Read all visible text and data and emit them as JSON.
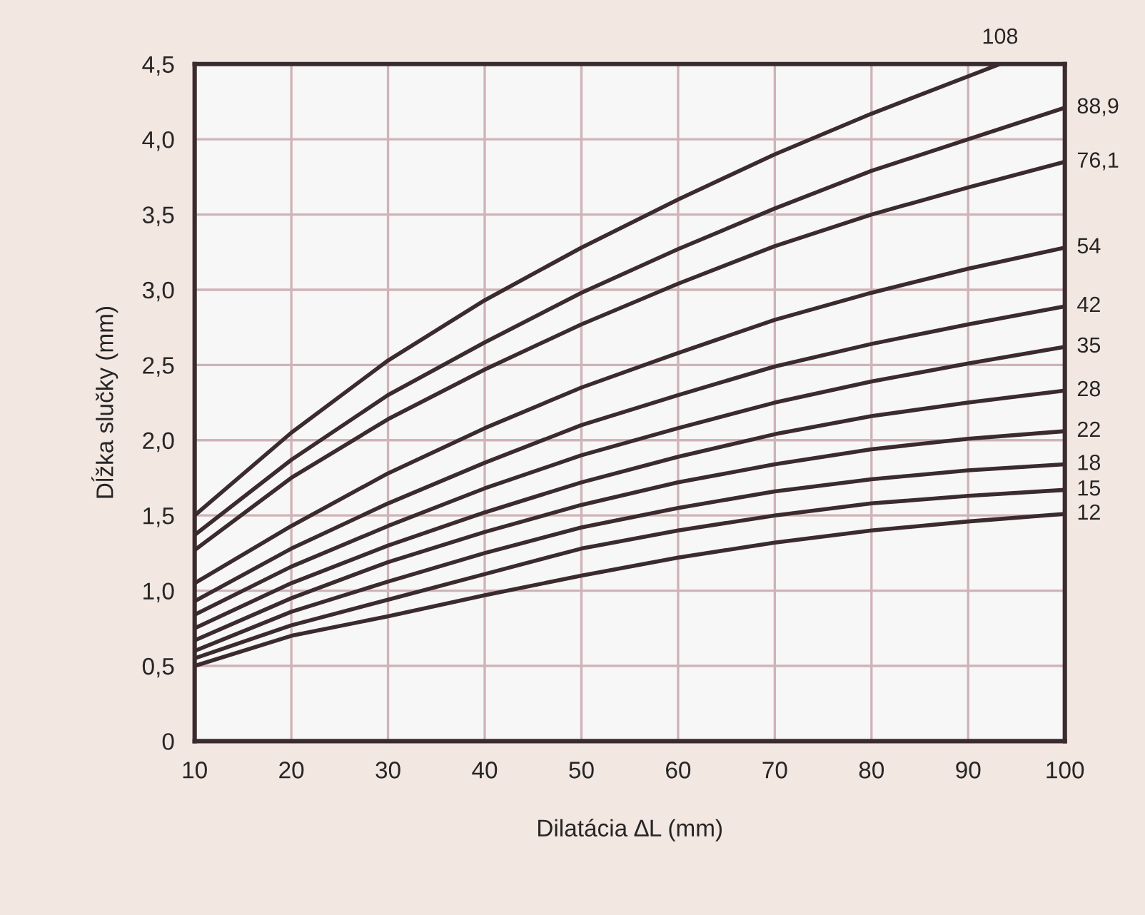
{
  "chart_data": {
    "type": "line",
    "xlabel": "Dilatácia ∆L (mm)",
    "ylabel": "Dĺžka slučky (mm)",
    "xlim": [
      10,
      100
    ],
    "xticks": [
      10,
      20,
      30,
      40,
      50,
      60,
      70,
      80,
      90,
      100
    ],
    "ylim": [
      0,
      4.5
    ],
    "yticks": [
      0,
      {
        "value": 0.5,
        "label": "0,5"
      },
      {
        "value": 1.0,
        "label": "1,0"
      },
      {
        "value": 1.5,
        "label": "1,5"
      },
      {
        "value": 2.0,
        "label": "2,0"
      },
      {
        "value": 2.5,
        "label": "2,5"
      },
      {
        "value": 3.0,
        "label": "3,0"
      },
      {
        "value": 3.5,
        "label": "3,5"
      },
      {
        "value": 4.0,
        "label": "4,0"
      },
      {
        "value": 4.5,
        "label": "4,5"
      }
    ],
    "grid": true,
    "marker": "none",
    "line_style": "solid",
    "series": [
      {
        "name": "108",
        "color": "#3b2b2e",
        "x": [
          10,
          20,
          30,
          40,
          50,
          60,
          70,
          80,
          93.3
        ],
        "values": [
          1.5,
          2.05,
          2.53,
          2.93,
          3.28,
          3.6,
          3.9,
          4.17,
          4.5
        ]
      },
      {
        "name": "88,9",
        "color": "#3b2b2e",
        "x": [
          10,
          20,
          30,
          40,
          50,
          60,
          70,
          80,
          90,
          100
        ],
        "values": [
          1.37,
          1.87,
          2.3,
          2.65,
          2.98,
          3.27,
          3.54,
          3.79,
          4.0,
          4.21
        ]
      },
      {
        "name": "76,1",
        "color": "#3b2b2e",
        "x": [
          10,
          20,
          30,
          40,
          50,
          60,
          70,
          80,
          90,
          100
        ],
        "values": [
          1.27,
          1.75,
          2.14,
          2.47,
          2.77,
          3.04,
          3.29,
          3.5,
          3.68,
          3.85
        ]
      },
      {
        "name": "54",
        "color": "#3b2b2e",
        "x": [
          10,
          20,
          30,
          40,
          50,
          60,
          70,
          80,
          90,
          100
        ],
        "values": [
          1.05,
          1.43,
          1.78,
          2.08,
          2.35,
          2.58,
          2.8,
          2.98,
          3.14,
          3.28
        ]
      },
      {
        "name": "42",
        "color": "#3b2b2e",
        "x": [
          10,
          20,
          30,
          40,
          50,
          60,
          70,
          80,
          90,
          100
        ],
        "values": [
          0.93,
          1.28,
          1.58,
          1.85,
          2.1,
          2.3,
          2.49,
          2.64,
          2.77,
          2.89
        ]
      },
      {
        "name": "35",
        "color": "#3b2b2e",
        "x": [
          10,
          20,
          30,
          40,
          50,
          60,
          70,
          80,
          90,
          100
        ],
        "values": [
          0.84,
          1.16,
          1.43,
          1.68,
          1.9,
          2.08,
          2.25,
          2.39,
          2.51,
          2.62
        ]
      },
      {
        "name": "28",
        "color": "#3b2b2e",
        "x": [
          10,
          20,
          30,
          40,
          50,
          60,
          70,
          80,
          90,
          100
        ],
        "values": [
          0.75,
          1.05,
          1.3,
          1.52,
          1.72,
          1.89,
          2.04,
          2.16,
          2.25,
          2.33
        ]
      },
      {
        "name": "22",
        "color": "#3b2b2e",
        "x": [
          10,
          20,
          30,
          40,
          50,
          60,
          70,
          80,
          90,
          100
        ],
        "values": [
          0.67,
          0.95,
          1.19,
          1.39,
          1.57,
          1.72,
          1.84,
          1.94,
          2.01,
          2.06
        ]
      },
      {
        "name": "18",
        "color": "#3b2b2e",
        "x": [
          10,
          20,
          30,
          40,
          50,
          60,
          70,
          80,
          90,
          100
        ],
        "values": [
          0.6,
          0.86,
          1.06,
          1.25,
          1.42,
          1.55,
          1.66,
          1.74,
          1.8,
          1.84
        ]
      },
      {
        "name": "15",
        "color": "#3b2b2e",
        "x": [
          10,
          20,
          30,
          40,
          50,
          60,
          70,
          80,
          90,
          100
        ],
        "values": [
          0.55,
          0.77,
          0.94,
          1.11,
          1.28,
          1.4,
          1.5,
          1.58,
          1.63,
          1.67
        ]
      },
      {
        "name": "12",
        "color": "#3b2b2e",
        "x": [
          10,
          20,
          30,
          40,
          50,
          60,
          70,
          80,
          90,
          100
        ],
        "values": [
          0.5,
          0.7,
          0.83,
          0.97,
          1.1,
          1.22,
          1.32,
          1.4,
          1.46,
          1.51
        ]
      }
    ]
  }
}
